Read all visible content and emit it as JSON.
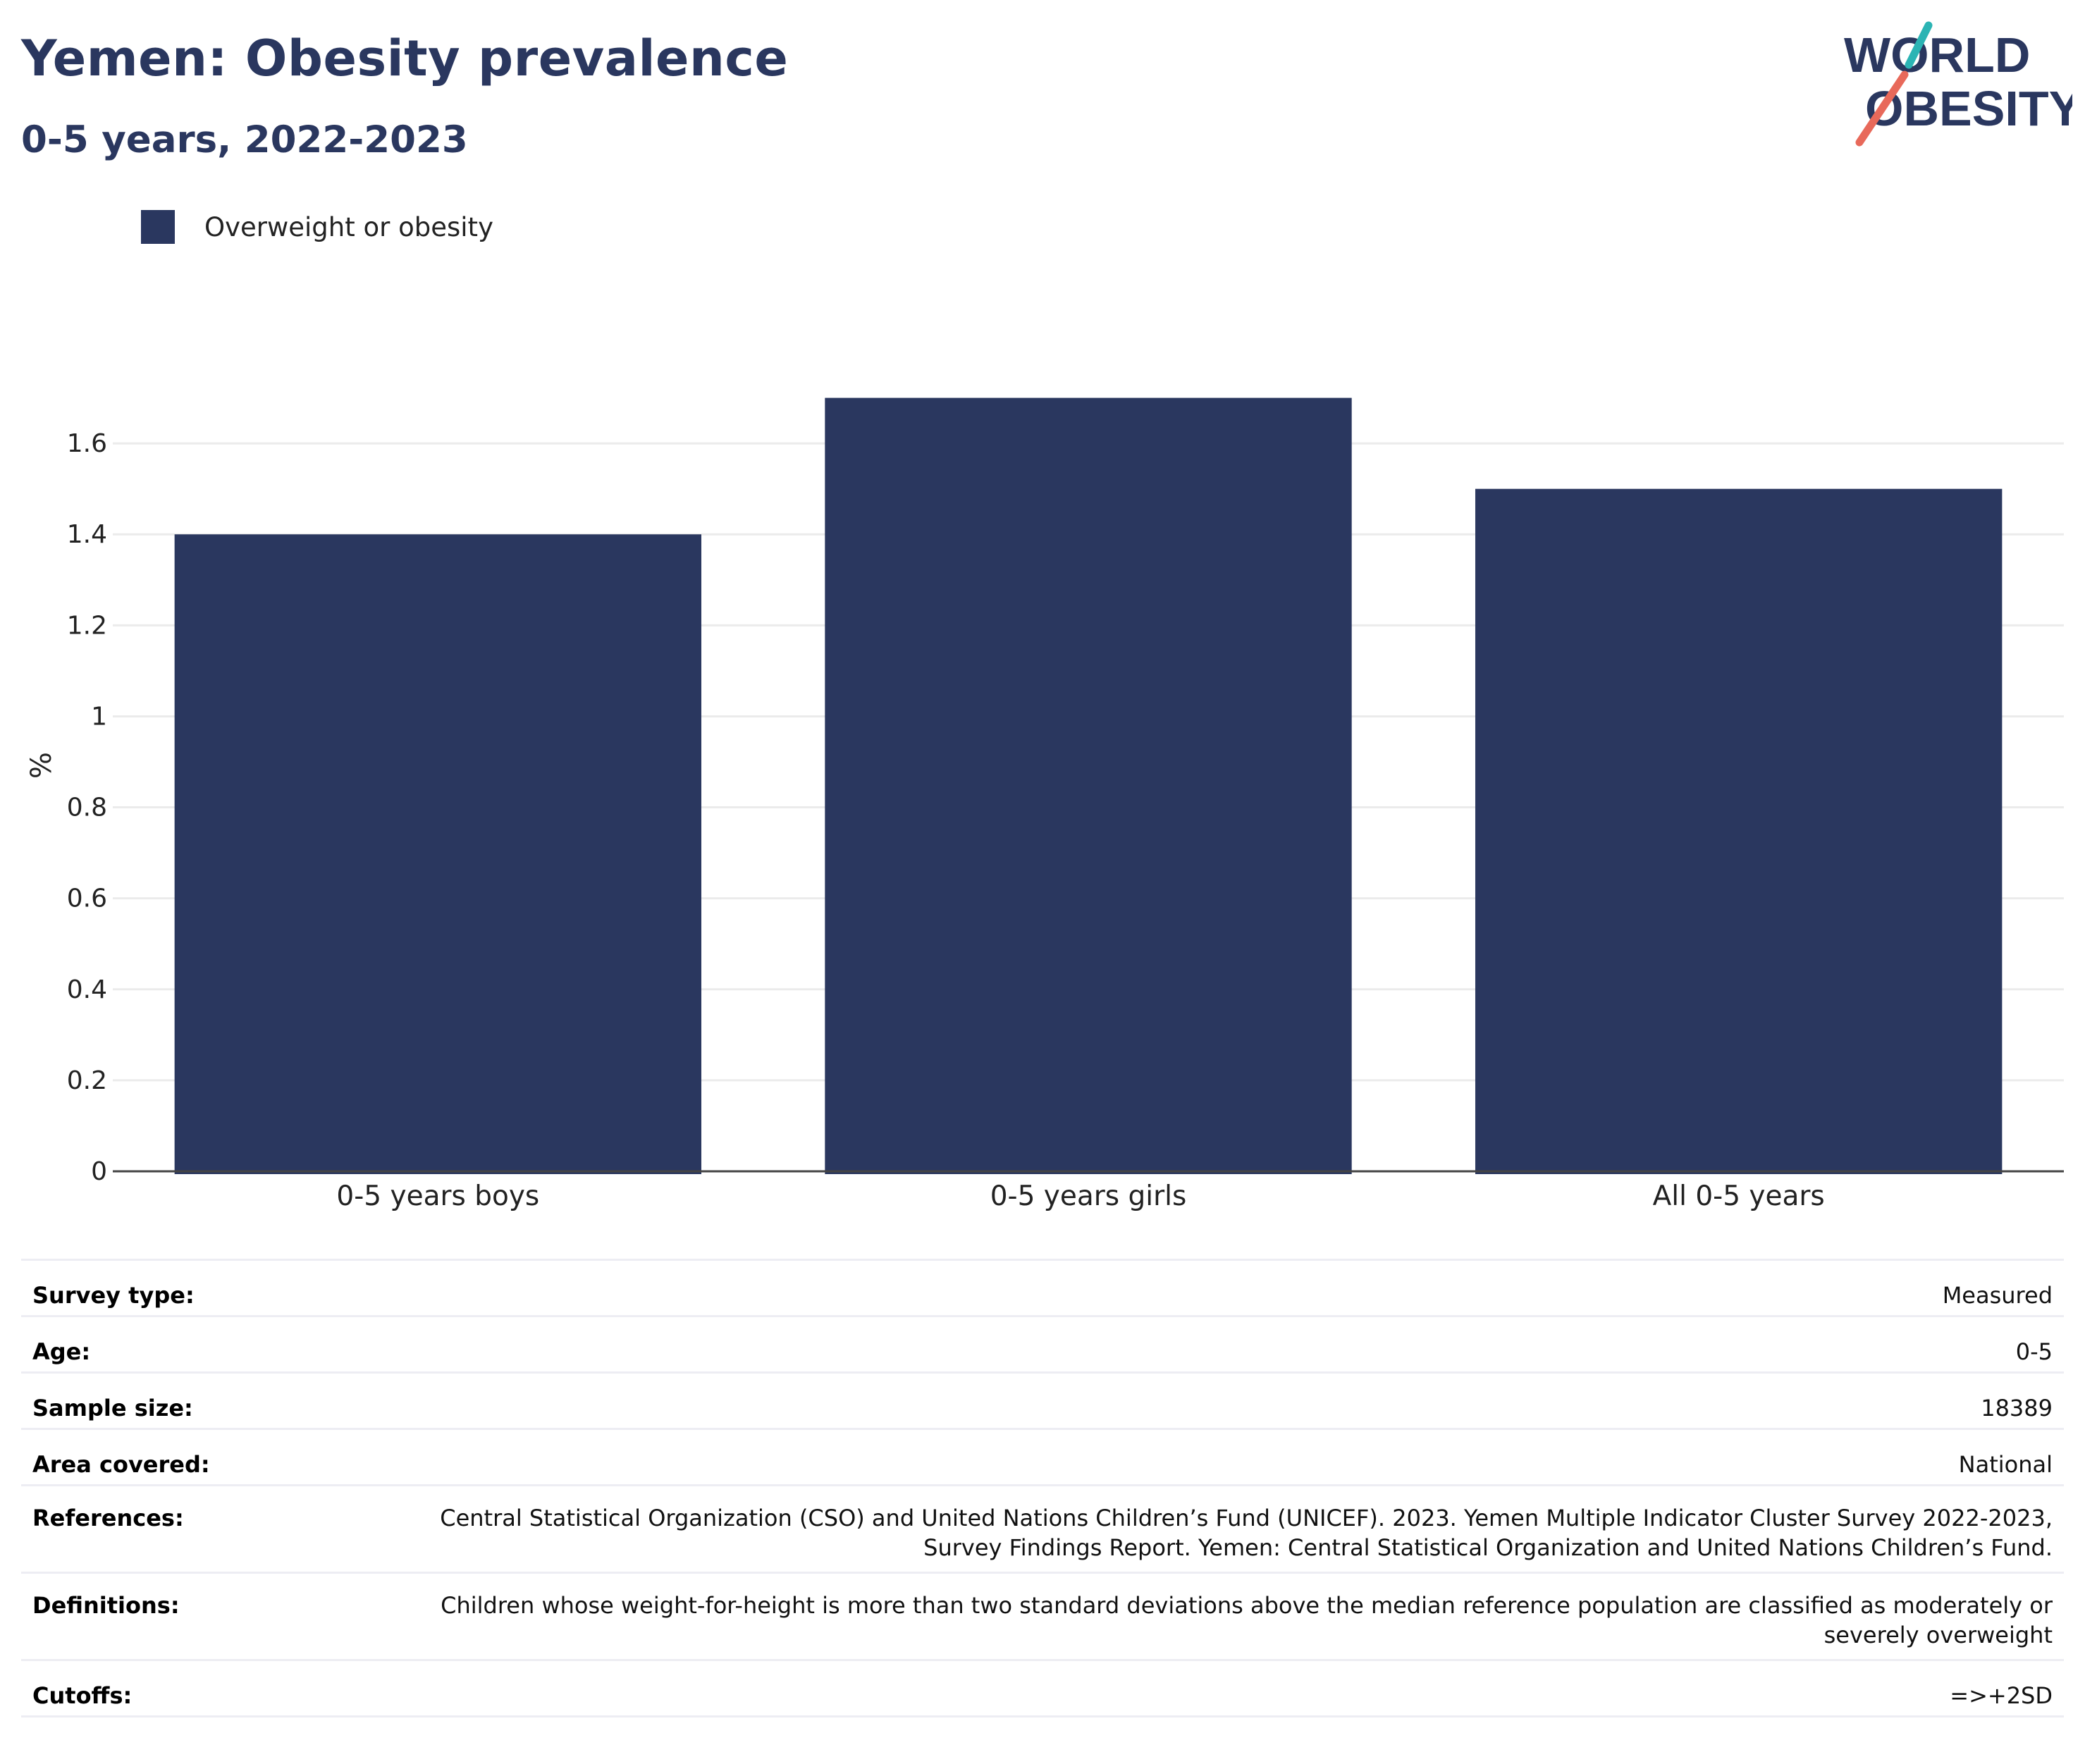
{
  "header": {
    "title": "Yemen: Obesity prevalence",
    "subtitle": "0-5 years, 2022-2023"
  },
  "logo": {
    "line1": "WORLD",
    "line2": "OBESITY"
  },
  "legend": {
    "label": "Overweight or obesity",
    "color": "#2a375f"
  },
  "chart_data": {
    "type": "bar",
    "title": "Yemen: Obesity prevalence",
    "subtitle": "0-5 years, 2022-2023",
    "categories": [
      "0-5 years boys",
      "0-5 years girls",
      "All 0-5 years"
    ],
    "series": [
      {
        "name": "Overweight or obesity",
        "values": [
          1.4,
          1.7,
          1.5
        ],
        "color": "#2a375f"
      }
    ],
    "xlabel": "",
    "ylabel": "%",
    "ylim": [
      0,
      1.8
    ],
    "yticks": [
      0,
      0.2,
      0.4,
      0.6,
      0.8,
      1,
      1.2,
      1.4,
      1.6
    ],
    "ytick_labels": [
      "0",
      "0.2",
      "0.4",
      "0.6",
      "0.8",
      "1",
      "1.2",
      "1.4",
      "1.6"
    ],
    "grid": true,
    "legend_position": "top-left"
  },
  "meta": {
    "rows": [
      {
        "key": "Survey type:",
        "value": "Measured"
      },
      {
        "key": "Age:",
        "value": "0-5"
      },
      {
        "key": "Sample size:",
        "value": "18389"
      },
      {
        "key": "Area covered:",
        "value": "National"
      },
      {
        "key": "References:",
        "value": "Central Statistical Organization (CSO) and United Nations Children’s Fund (UNICEF). 2023. Yemen Multiple Indicator Cluster Survey 2022-2023, Survey Findings Report. Yemen: Central Statistical Organization and United Nations Children’s Fund."
      },
      {
        "key": "Definitions:",
        "value": "Children whose weight-for-height is more than two standard deviations above the median reference population are classified as moderately or severely overweight"
      },
      {
        "key": "Cutoffs:",
        "value": "=>+2SD"
      }
    ]
  }
}
